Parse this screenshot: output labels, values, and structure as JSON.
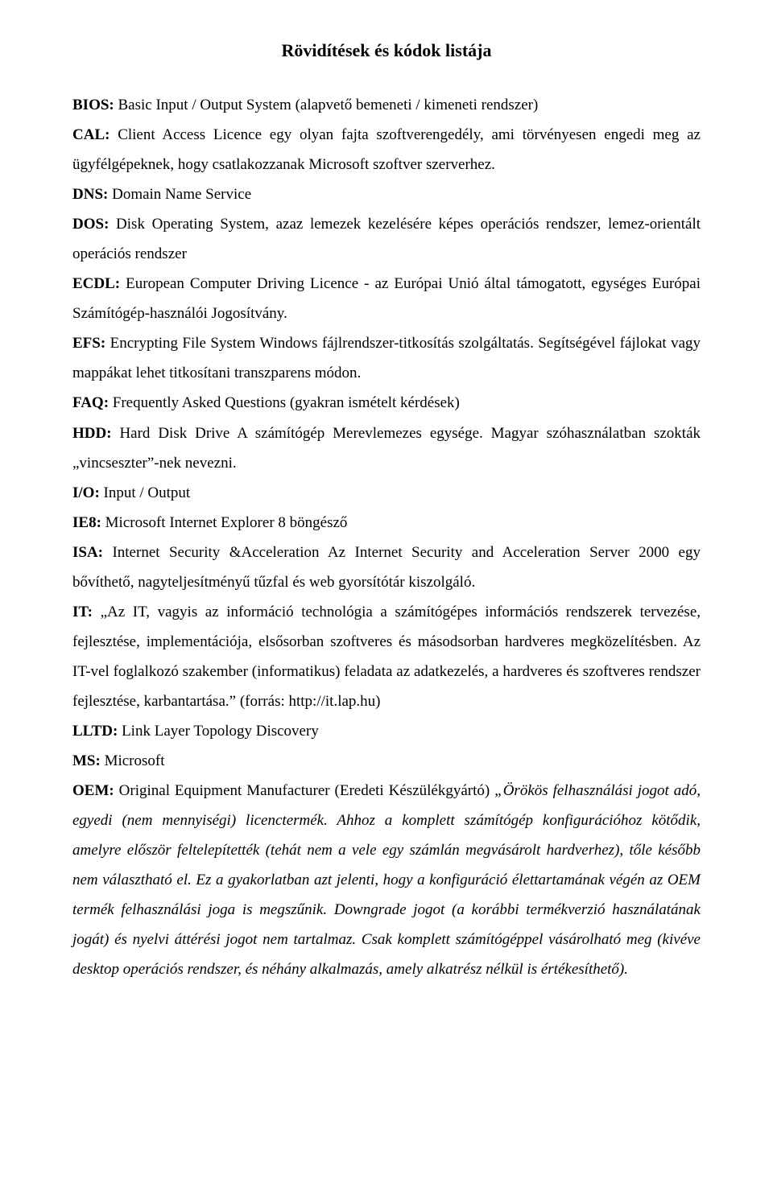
{
  "title": "Rövidítések és kódok listája",
  "entries": {
    "bios": {
      "abbr": "BIOS:",
      "text": " Basic Input / Output System (alapvető bemeneti / kimeneti rendszer)"
    },
    "cal": {
      "abbr": "CAL:",
      "text": " Client Access Licence egy olyan fajta szoftverengedély, ami törvényesen engedi meg az ügyfélgépeknek, hogy csatlakozzanak Microsoft szoftver szerverhez."
    },
    "dns": {
      "abbr": "DNS:",
      "text": " Domain Name Service"
    },
    "dos": {
      "abbr": "DOS:",
      "text": " Disk Operating System, azaz lemezek kezelésére képes operációs rendszer, lemez-orientált operációs rendszer"
    },
    "ecdl": {
      "abbr": "ECDL:",
      "text": " European Computer Driving Licence - az Európai Unió által támogatott, egységes Európai Számítógép-használói Jogosítvány."
    },
    "efs": {
      "abbr": "EFS:",
      "text": " Encrypting File System Windows fájlrendszer-titkosítás szolgáltatás. Segítségével fájlokat vagy mappákat lehet titkosítani transzparens módon."
    },
    "faq": {
      "abbr": "FAQ:",
      "text": " Frequently Asked Questions (gyakran ismételt kérdések)"
    },
    "hdd": {
      "abbr": "HDD:",
      "text": " Hard Disk Drive A számítógép Merevlemezes egysége. Magyar szóhasználatban szokták „vincseszter”-nek nevezni."
    },
    "io": {
      "abbr": "I/O:",
      "text": " Input / Output"
    },
    "ie8": {
      "abbr": "IE8:",
      "text": " Microsoft Internet Explorer 8 böngésző"
    },
    "isa": {
      "abbr": "ISA:",
      "text": " Internet Security &Acceleration Az Internet Security and Acceleration Server 2000 egy bővíthető, nagyteljesítményű tűzfal és web gyorsítótár kiszolgáló."
    },
    "it": {
      "abbr": "IT:",
      "text": " „Az IT, vagyis az információ technológia a számítógépes információs rendszerek tervezése, fejlesztése, implementációja, elsősorban szoftveres és másodsorban hardveres megközelítésben. Az IT-vel foglalkozó szakember (informatikus) feladata az adatkezelés, a hardveres és szoftveres rendszer fejlesztése, karbantartása.” (forrás: http://it.lap.hu)"
    },
    "lltd": {
      "abbr": "LLTD:",
      "text": " Link Layer Topology Discovery"
    },
    "ms": {
      "abbr": "MS:",
      "text": " Microsoft"
    },
    "oem": {
      "abbr": "OEM:",
      "text_plain": " Original Equipment Manufacturer (Eredeti Készülékgyártó) ",
      "text_italic1": "„Örökös felhasználási jogot adó, egyedi (nem mennyiségi) licenctermék. Ahhoz a komplett számítógép konfigurációhoz kötődik, amelyre először feltelepítették (tehát nem a vele egy számlán megvásárolt hardverhez), tőle később nem választható el. Ez a gyakorlatban azt jelenti, hogy a konfiguráció élettartamának végén az OEM termék felhasználási joga is megszűnik. Downgrade jogot (a korábbi termékverzió használatának jogát) és nyelvi áttérési jogot nem tartalmaz. Csak komplett számítógéppel vásárolható meg (kivéve desktop operációs rendszer, és néhány alkalmazás, amely alkatrész nélkül is értékesíthető)."
    }
  }
}
